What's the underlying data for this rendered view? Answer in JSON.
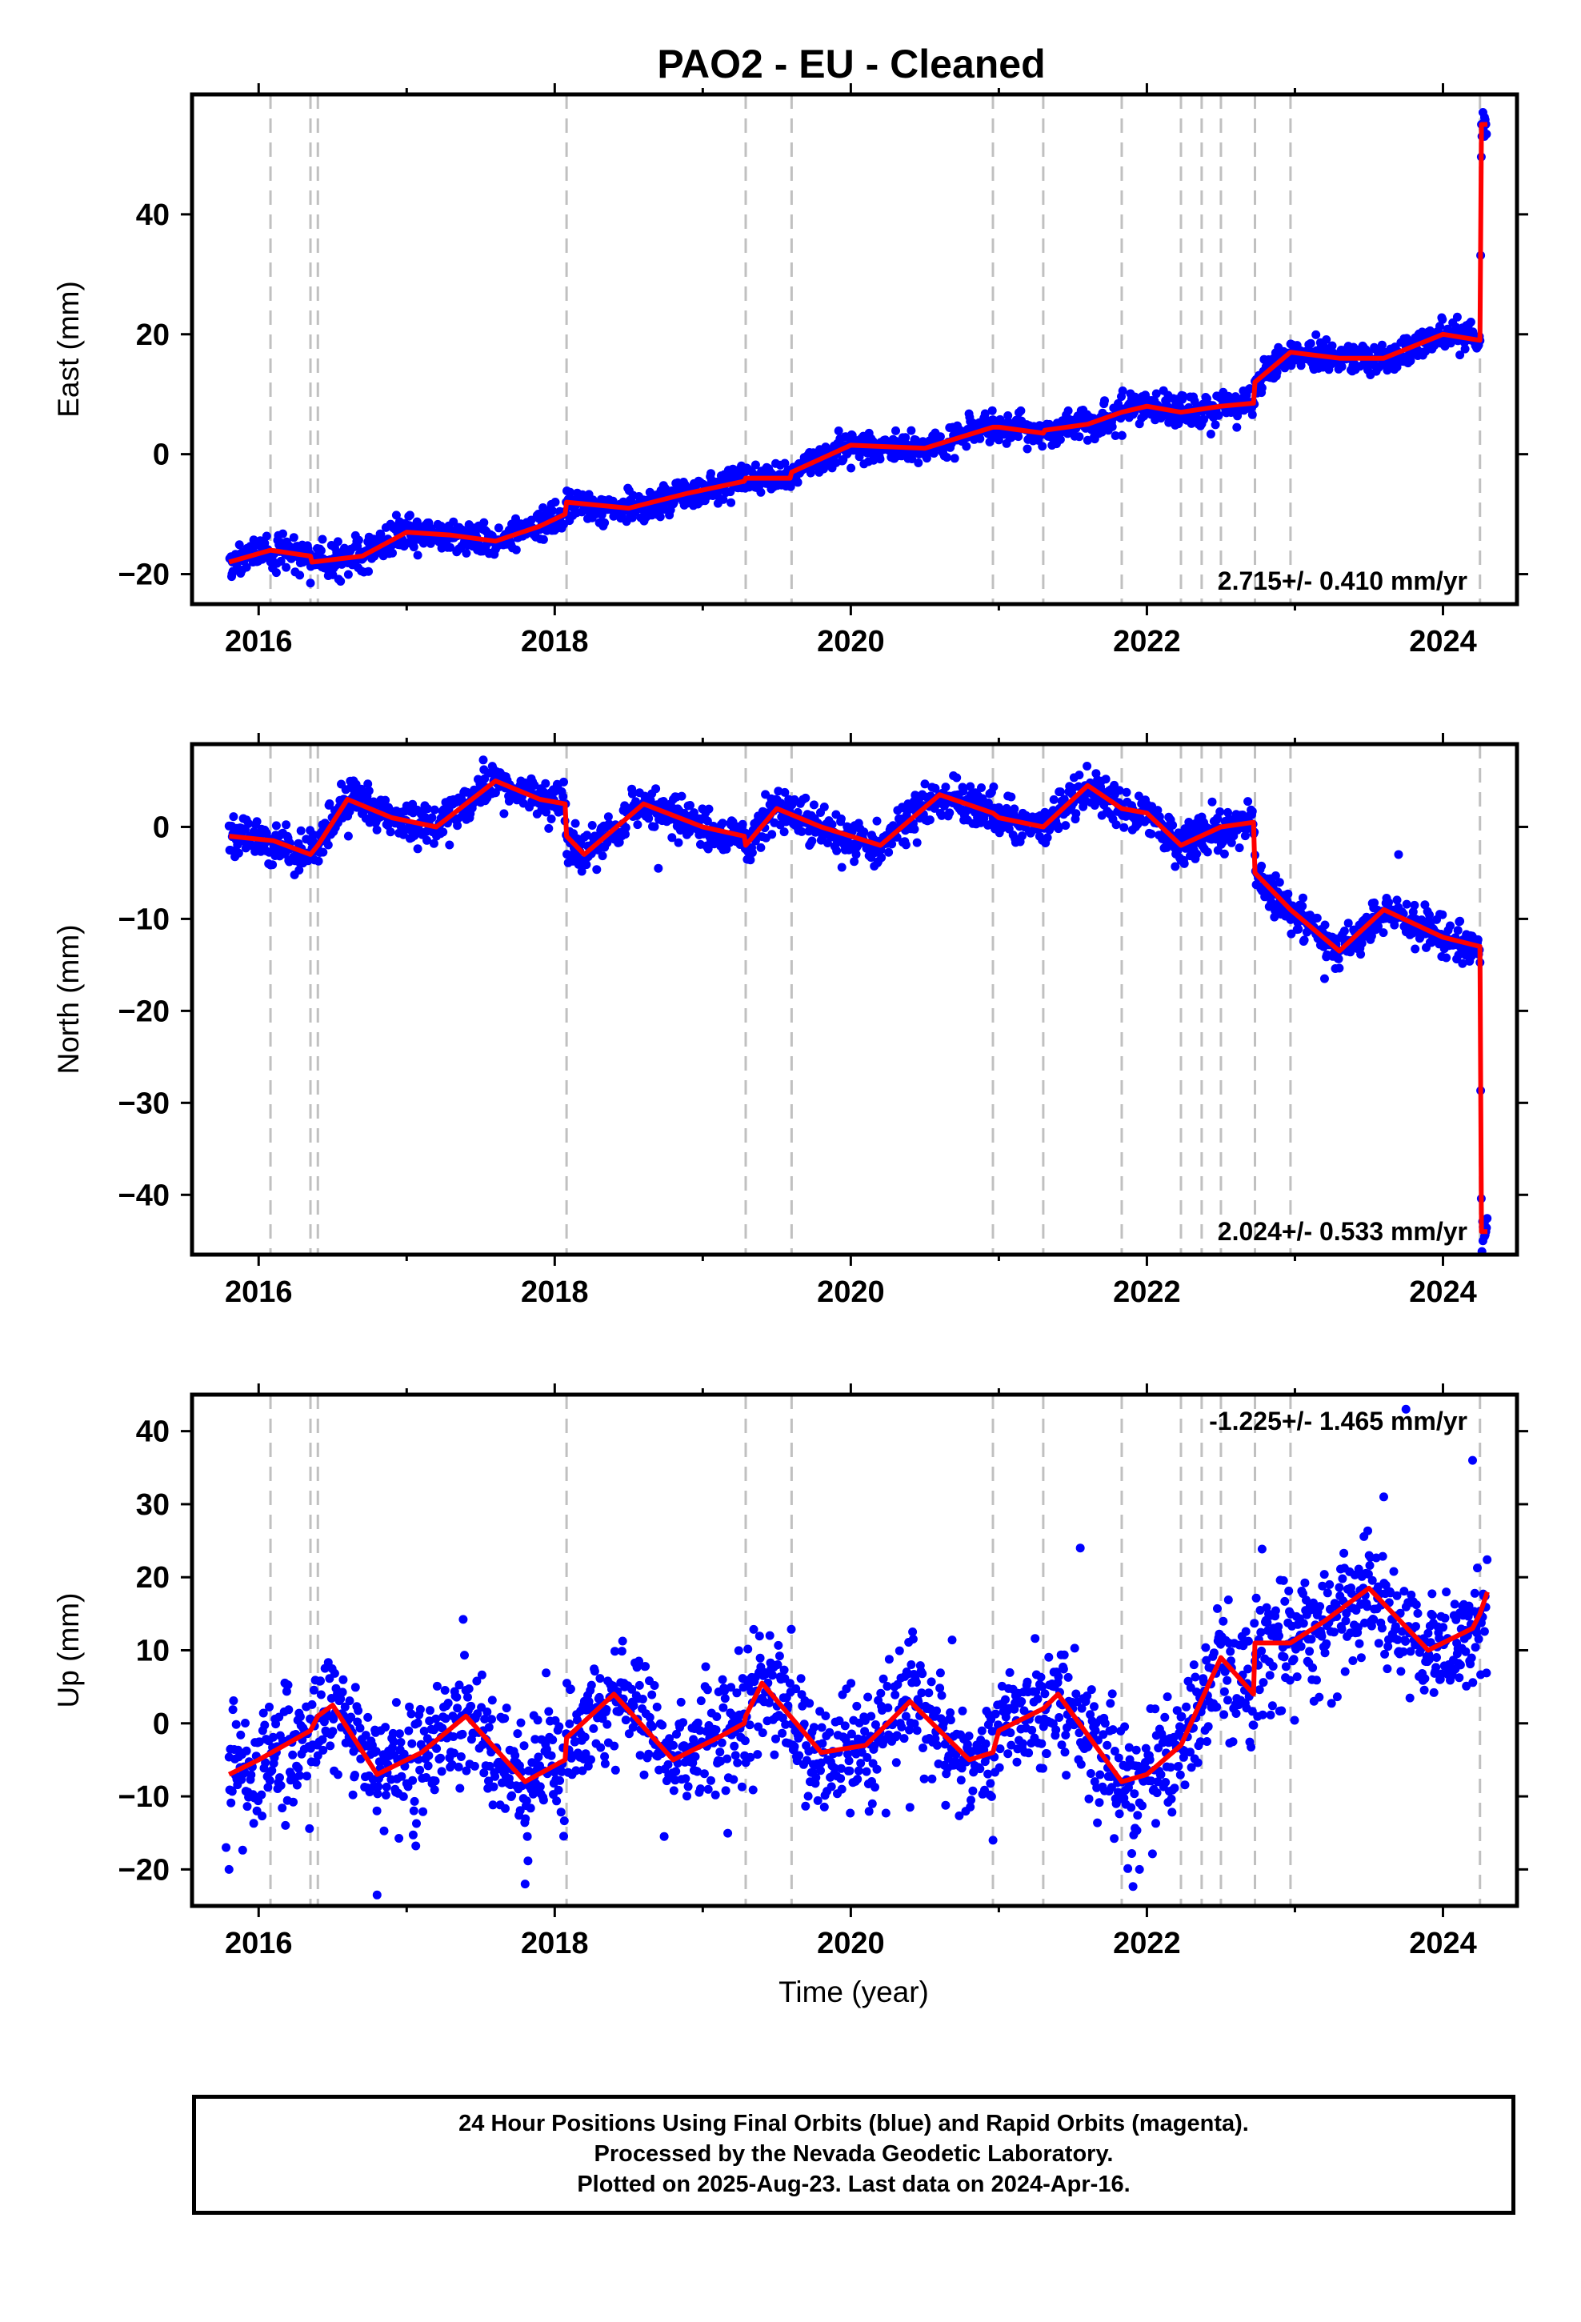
{
  "title": "PAO2  - EU - Cleaned",
  "xlabel": "Time (year)",
  "colors": {
    "final_orbits": "#0000ff",
    "model": "#ff0000",
    "break_lines": "#c0c0c0",
    "frame": "#000000"
  },
  "caption": {
    "line1": "24 Hour Positions Using Final Orbits (blue) and Rapid Orbits (magenta).",
    "line2": "Processed by the Nevada Geodetic Laboratory.",
    "line3": "Plotted on 2025-Aug-23. Last data on 2024-Apr-16."
  },
  "chart_data": [
    {
      "type": "scatter",
      "ylabel": "East (mm)",
      "rate_label": "2.715+/- 0.410 mm/yr",
      "rate_placement": "bottom-right",
      "xlim": [
        2015.55,
        2024.5
      ],
      "ylim": [
        -25,
        60
      ],
      "xticks": [
        2016,
        2018,
        2020,
        2022,
        2024
      ],
      "yticks": [
        -20,
        0,
        20,
        40
      ],
      "break_lines": [
        2016.08,
        2016.35,
        2016.4,
        2018.08,
        2019.29,
        2019.6,
        2020.96,
        2021.3,
        2021.83,
        2022.23,
        2022.37,
        2022.5,
        2022.73,
        2022.97,
        2024.25
      ],
      "noise_mm": 1.3,
      "model": {
        "x": [
          2015.8,
          2016.08,
          2016.35,
          2016.36,
          2016.7,
          2017.0,
          2017.3,
          2017.6,
          2017.9,
          2018.07,
          2018.08,
          2018.5,
          2018.9,
          2019.28,
          2019.29,
          2019.59,
          2019.6,
          2020.0,
          2020.5,
          2020.96,
          2021.0,
          2021.3,
          2021.31,
          2021.6,
          2021.83,
          2022.0,
          2022.23,
          2022.5,
          2022.72,
          2022.73,
          2022.97,
          2023.3,
          2023.6,
          2024.0,
          2024.25,
          2024.26,
          2024.3
        ],
        "y": [
          -18,
          -16,
          -17,
          -18,
          -17,
          -13,
          -13.5,
          -14.5,
          -12,
          -10,
          -8,
          -9,
          -6.5,
          -4.5,
          -4,
          -4,
          -3,
          1.5,
          1.0,
          4.5,
          4.5,
          3.5,
          4,
          5,
          7,
          8,
          7,
          8,
          8.5,
          12,
          17,
          16,
          16,
          20,
          19,
          55,
          55
        ]
      },
      "outliers": [
        [
          2015.82,
          -20
        ],
        [
          2016.35,
          -21.5
        ],
        [
          2024.27,
          57
        ],
        [
          2024.28,
          53
        ],
        [
          2024.26,
          55
        ]
      ]
    },
    {
      "type": "scatter",
      "ylabel": "North (mm)",
      "rate_label": "2.024+/- 0.533 mm/yr",
      "rate_placement": "bottom-right",
      "xlim": [
        2015.55,
        2024.5
      ],
      "ylim": [
        -46.5,
        9
      ],
      "xticks": [
        2016,
        2018,
        2020,
        2022,
        2024
      ],
      "yticks": [
        -40,
        -30,
        -20,
        -10,
        0
      ],
      "break_lines": [
        2016.08,
        2016.35,
        2016.4,
        2018.08,
        2019.29,
        2019.6,
        2020.96,
        2021.3,
        2021.83,
        2022.23,
        2022.37,
        2022.5,
        2022.73,
        2022.97,
        2024.25
      ],
      "noise_mm": 1.1,
      "model": {
        "x": [
          2015.8,
          2016.1,
          2016.35,
          2016.4,
          2016.6,
          2016.9,
          2017.2,
          2017.6,
          2017.9,
          2018.07,
          2018.08,
          2018.2,
          2018.6,
          2019.0,
          2019.28,
          2019.29,
          2019.5,
          2019.8,
          2020.2,
          2020.6,
          2020.96,
          2021.0,
          2021.3,
          2021.6,
          2021.83,
          2022.0,
          2022.23,
          2022.5,
          2022.72,
          2022.73,
          2022.97,
          2023.3,
          2023.6,
          2024.0,
          2024.25,
          2024.26,
          2024.3
        ],
        "y": [
          -1,
          -1.5,
          -3,
          -2,
          3,
          1,
          0,
          5,
          3,
          2.5,
          -1,
          -3,
          2.5,
          0,
          -1,
          -2,
          2,
          0,
          -2,
          3.5,
          1.5,
          1,
          0,
          4.5,
          2,
          1.5,
          -2,
          0,
          0.5,
          -5,
          -9,
          -13.5,
          -9,
          -12,
          -13,
          -44,
          -44
        ]
      },
      "outliers": [
        [
          2024.27,
          -45
        ],
        [
          2024.28,
          -43
        ],
        [
          2023.7,
          -3
        ],
        [
          2018.7,
          -4.5
        ],
        [
          2023.2,
          -16.5
        ]
      ]
    },
    {
      "type": "scatter",
      "ylabel": "Up (mm)",
      "rate_label": "-1.225+/- 1.465 mm/yr",
      "rate_placement": "top-right",
      "xlim": [
        2015.55,
        2024.5
      ],
      "ylim": [
        -25,
        45
      ],
      "xticks": [
        2016,
        2018,
        2020,
        2022,
        2024
      ],
      "yticks": [
        -20,
        -10,
        0,
        10,
        20,
        30,
        40
      ],
      "break_lines": [
        2016.08,
        2016.35,
        2016.4,
        2018.08,
        2019.29,
        2019.6,
        2020.96,
        2021.3,
        2021.83,
        2022.23,
        2022.37,
        2022.5,
        2022.73,
        2022.97,
        2024.25
      ],
      "noise_mm": 4.2,
      "model": {
        "x": [
          2015.8,
          2016.0,
          2016.35,
          2016.4,
          2016.5,
          2016.8,
          2017.1,
          2017.4,
          2017.8,
          2018.07,
          2018.08,
          2018.4,
          2018.8,
          2019.1,
          2019.28,
          2019.29,
          2019.4,
          2019.8,
          2020.1,
          2020.4,
          2020.8,
          2020.96,
          2021.0,
          2021.3,
          2021.4,
          2021.83,
          2022.0,
          2022.23,
          2022.5,
          2022.72,
          2022.73,
          2022.97,
          2023.2,
          2023.5,
          2023.9,
          2024.2,
          2024.25,
          2024.3
        ],
        "y": [
          -7,
          -5,
          -1,
          1,
          2.5,
          -7,
          -4,
          1,
          -8,
          -5,
          -2,
          4,
          -5,
          -2,
          0,
          1,
          5.5,
          -4,
          -3,
          3,
          -5,
          -4,
          -1,
          2,
          4,
          -8,
          -7,
          -3,
          9,
          4,
          11,
          11,
          14,
          18.5,
          10,
          13,
          15,
          18
        ]
      },
      "outliers": [
        [
          2015.78,
          -17
        ],
        [
          2015.8,
          -20
        ],
        [
          2016.8,
          -23.5
        ],
        [
          2017.8,
          -22
        ],
        [
          2021.95,
          -20
        ],
        [
          2023.75,
          43
        ],
        [
          2024.2,
          36
        ],
        [
          2021.55,
          24
        ],
        [
          2023.6,
          31
        ]
      ]
    }
  ]
}
